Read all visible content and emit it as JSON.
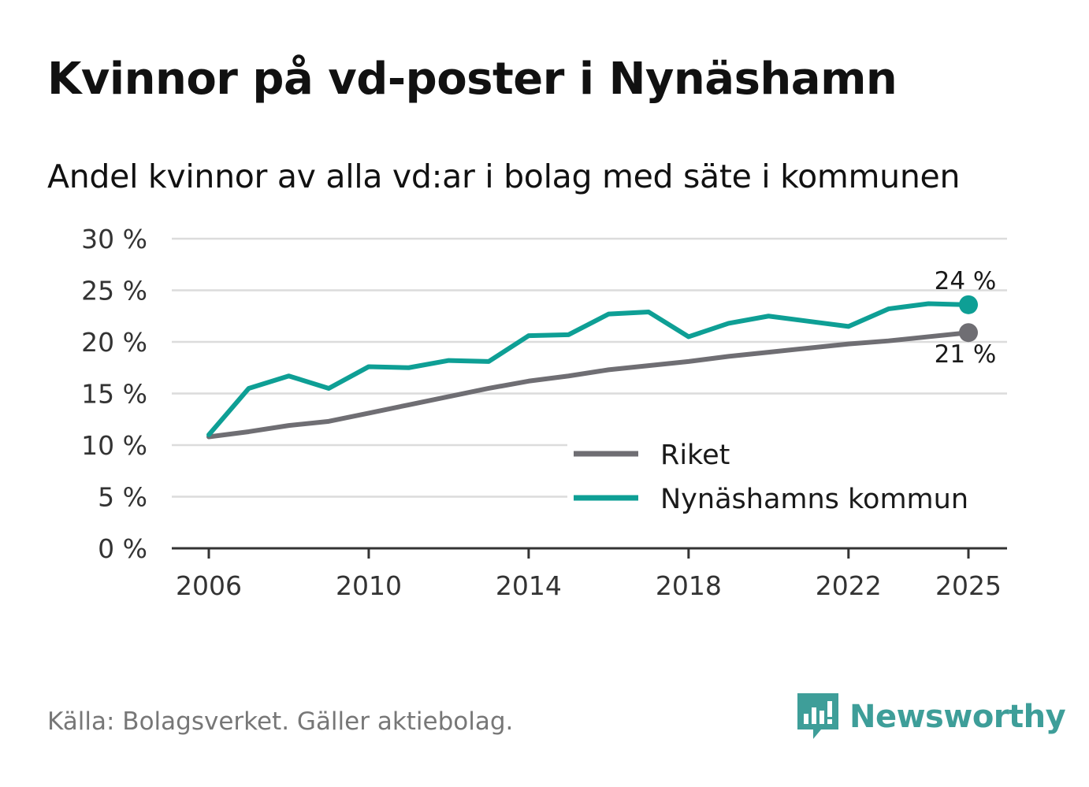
{
  "header": {
    "title": "Kvinnor på vd-poster i Nynäshamn",
    "subtitle": "Andel kvinnor av alla vd:ar i bolag med säte i kommunen"
  },
  "footer": {
    "source": "Källa: Bolagsverket. Gäller aktiebolag.",
    "brand": "Newsworthy"
  },
  "colors": {
    "riket": "#6f6e73",
    "kommun": "#0e9f95",
    "grid": "#dcdcdc",
    "axis": "#333333",
    "brand": "#3e9e99"
  },
  "chart_data": {
    "type": "line",
    "title": "Kvinnor på vd-poster i Nynäshamn",
    "subtitle": "Andel kvinnor av alla vd:ar i bolag med säte i kommunen",
    "xlabel": "",
    "ylabel": "",
    "ylim": [
      0,
      30
    ],
    "xlim": [
      2006,
      2025
    ],
    "y_ticks": [
      0,
      5,
      10,
      15,
      20,
      25,
      30
    ],
    "y_tick_labels": [
      "0 %",
      "5 %",
      "10 %",
      "15 %",
      "20 %",
      "25 %",
      "30 %"
    ],
    "x_ticks": [
      2006,
      2010,
      2014,
      2018,
      2022,
      2025
    ],
    "x_tick_labels": [
      "2006",
      "2010",
      "2014",
      "2018",
      "2022",
      "2025"
    ],
    "grid": true,
    "legend_position": "bottom-right",
    "x": [
      2006,
      2007,
      2008,
      2009,
      2010,
      2011,
      2012,
      2013,
      2014,
      2015,
      2016,
      2017,
      2018,
      2019,
      2020,
      2021,
      2022,
      2023,
      2024,
      2025
    ],
    "series": [
      {
        "name": "Riket",
        "values": [
          10.8,
          11.3,
          11.9,
          12.3,
          13.1,
          13.9,
          14.7,
          15.5,
          16.2,
          16.7,
          17.3,
          17.7,
          18.1,
          18.6,
          19.0,
          19.4,
          19.8,
          20.1,
          20.5,
          20.9
        ],
        "end_label": "21 %"
      },
      {
        "name": "Nynäshamns kommun",
        "values": [
          11.0,
          15.5,
          16.7,
          15.5,
          17.6,
          17.5,
          18.2,
          18.1,
          20.6,
          20.7,
          22.7,
          22.9,
          20.5,
          21.8,
          22.5,
          22.0,
          21.5,
          23.2,
          23.7,
          23.6
        ],
        "end_label": "24 %"
      }
    ]
  }
}
